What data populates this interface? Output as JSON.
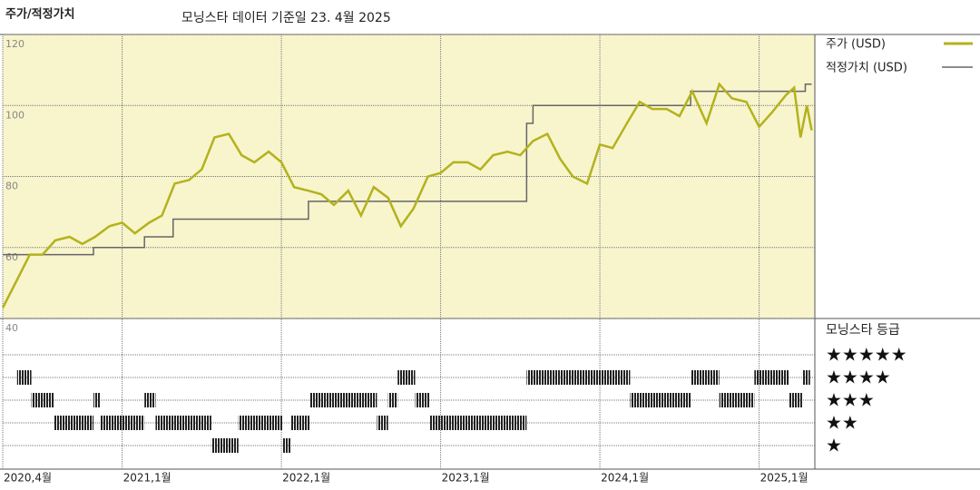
{
  "chart_data": {
    "type": "line",
    "title": "주가/적정가치",
    "subtitle": "모닝스타 데이터 기준일 23. 4월 2025",
    "xlim": [
      2020.25,
      2025.35
    ],
    "xticks": [
      {
        "value": 2020.25,
        "label": "2020,4월"
      },
      {
        "value": 2021.0,
        "label": "2021,1월"
      },
      {
        "value": 2022.0,
        "label": "2022,1월"
      },
      {
        "value": 2023.0,
        "label": "2023,1월"
      },
      {
        "value": 2024.0,
        "label": "2024,1월"
      },
      {
        "value": 2025.0,
        "label": "2025,1월"
      }
    ],
    "ylim": [
      40,
      120
    ],
    "yticks": [
      40,
      60,
      80,
      100,
      120
    ],
    "grid": true,
    "series": [
      {
        "name": "주가 (USD)",
        "color": "#b3b21e",
        "x": [
          2020.25,
          2020.33,
          2020.42,
          2020.5,
          2020.58,
          2020.67,
          2020.75,
          2020.83,
          2020.92,
          2021.0,
          2021.08,
          2021.17,
          2021.25,
          2021.33,
          2021.42,
          2021.5,
          2021.58,
          2021.67,
          2021.75,
          2021.83,
          2021.92,
          2022.0,
          2022.08,
          2022.17,
          2022.25,
          2022.33,
          2022.42,
          2022.5,
          2022.58,
          2022.67,
          2022.75,
          2022.83,
          2022.92,
          2023.0,
          2023.08,
          2023.17,
          2023.25,
          2023.33,
          2023.42,
          2023.5,
          2023.58,
          2023.67,
          2023.75,
          2023.83,
          2023.92,
          2024.0,
          2024.08,
          2024.17,
          2024.25,
          2024.33,
          2024.42,
          2024.5,
          2024.58,
          2024.67,
          2024.75,
          2024.83,
          2024.92,
          2025.0,
          2025.08,
          2025.17,
          2025.22,
          2025.26,
          2025.3,
          2025.33
        ],
        "values": [
          43,
          50,
          58,
          58,
          62,
          63,
          61,
          63,
          66,
          67,
          64,
          67,
          69,
          78,
          79,
          82,
          91,
          92,
          86,
          84,
          87,
          84,
          77,
          76,
          75,
          72,
          76,
          69,
          77,
          74,
          66,
          71,
          80,
          81,
          84,
          84,
          82,
          86,
          87,
          86,
          90,
          92,
          85,
          80,
          78,
          89,
          88,
          95,
          101,
          99,
          99,
          97,
          104,
          95,
          106,
          102,
          101,
          94,
          98,
          103,
          105,
          91,
          100,
          93
        ]
      },
      {
        "name": "적정가치 (USD)",
        "color": "#666666",
        "drawstyle": "steps-post",
        "x": [
          2020.25,
          2020.82,
          2021.14,
          2021.32,
          2022.17,
          2023.54,
          2023.58,
          2024.57,
          2025.29,
          2025.33
        ],
        "values": [
          58,
          60,
          63,
          68,
          73,
          95,
          100,
          104,
          106,
          106
        ]
      }
    ],
    "rating_title": "모닝스타 등급",
    "star_labels": [
      "★★★★★",
      "★★★★",
      "★★★",
      "★★",
      "★"
    ],
    "rating_x": [
      2020.34,
      2020.43,
      2020.57,
      2020.82,
      2020.86,
      2021.14,
      2021.21,
      2021.56,
      2021.73,
      2022.01,
      2022.06,
      2022.18,
      2022.6,
      2022.67,
      2022.73,
      2022.84,
      2022.93,
      2023.54,
      2024.19,
      2024.57,
      2024.75,
      2024.97,
      2025.19,
      2025.27,
      2025.32
    ],
    "rating_stars": [
      4,
      3,
      2,
      3,
      2,
      3,
      2,
      1,
      2,
      1,
      2,
      3,
      2,
      3,
      4,
      3,
      2,
      4,
      3,
      4,
      3,
      4,
      3,
      4
    ]
  }
}
